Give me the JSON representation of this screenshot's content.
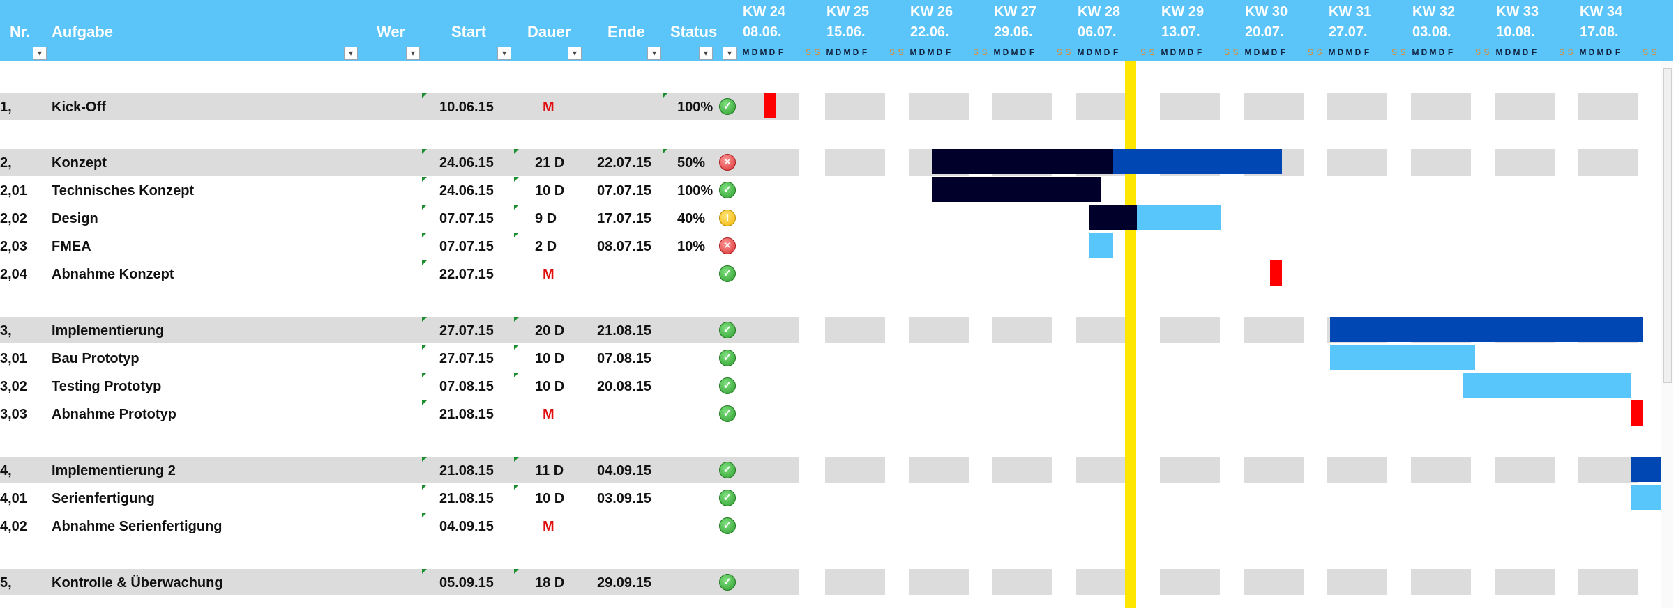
{
  "header": {
    "nr": "Nr.",
    "task": "Aufgabe",
    "who": "Wer",
    "start": "Start",
    "duration": "Dauer",
    "end": "Ende",
    "status": "Status",
    "filter_glyph": "▾"
  },
  "weeks": [
    {
      "kw": "KW 24",
      "date": "08.06."
    },
    {
      "kw": "KW 25",
      "date": "15.06."
    },
    {
      "kw": "KW 26",
      "date": "22.06."
    },
    {
      "kw": "KW 27",
      "date": "29.06."
    },
    {
      "kw": "KW 28",
      "date": "06.07."
    },
    {
      "kw": "KW 29",
      "date": "13.07."
    },
    {
      "kw": "KW 30",
      "date": "20.07."
    },
    {
      "kw": "KW 31",
      "date": "27.07."
    },
    {
      "kw": "KW 32",
      "date": "03.08."
    },
    {
      "kw": "KW 33",
      "date": "10.08."
    },
    {
      "kw": "KW 34",
      "date": "17.08."
    }
  ],
  "day_letters": [
    "M",
    "D",
    "M",
    "D",
    "F",
    "S",
    "S"
  ],
  "tasks": [
    {
      "nr": "1,",
      "name": "Kick-Off",
      "start": "10.06.15",
      "duration": "M",
      "end": "",
      "pct": "100%",
      "status": "ok",
      "group": true
    },
    {
      "nr": "2,",
      "name": "Konzept",
      "start": "24.06.15",
      "duration": "21 D",
      "end": "22.07.15",
      "pct": "50%",
      "status": "err",
      "group": true
    },
    {
      "nr": "2,01",
      "name": "Technisches Konzept",
      "start": "24.06.15",
      "duration": "10 D",
      "end": "07.07.15",
      "pct": "100%",
      "status": "ok",
      "group": false
    },
    {
      "nr": "2,02",
      "name": "Design",
      "start": "07.07.15",
      "duration": "9 D",
      "end": "17.07.15",
      "pct": "40%",
      "status": "warn",
      "group": false
    },
    {
      "nr": "2,03",
      "name": "FMEA",
      "start": "07.07.15",
      "duration": "2 D",
      "end": "08.07.15",
      "pct": "10%",
      "status": "err",
      "group": false
    },
    {
      "nr": "2,04",
      "name": "Abnahme Konzept",
      "start": "22.07.15",
      "duration": "M",
      "end": "",
      "pct": "",
      "status": "ok",
      "group": false
    },
    {
      "nr": "3,",
      "name": "Implementierung",
      "start": "27.07.15",
      "duration": "20 D",
      "end": "21.08.15",
      "pct": "",
      "status": "ok",
      "group": true
    },
    {
      "nr": "3,01",
      "name": "Bau Prototyp",
      "start": "27.07.15",
      "duration": "10 D",
      "end": "07.08.15",
      "pct": "",
      "status": "ok",
      "group": false
    },
    {
      "nr": "3,02",
      "name": "Testing Prototyp",
      "start": "07.08.15",
      "duration": "10 D",
      "end": "20.08.15",
      "pct": "",
      "status": "ok",
      "group": false
    },
    {
      "nr": "3,03",
      "name": "Abnahme Prototyp",
      "start": "21.08.15",
      "duration": "M",
      "end": "",
      "pct": "",
      "status": "ok",
      "group": false
    },
    {
      "nr": "4,",
      "name": "Implementierung 2",
      "start": "21.08.15",
      "duration": "11 D",
      "end": "04.09.15",
      "pct": "",
      "status": "ok",
      "group": true
    },
    {
      "nr": "4,01",
      "name": "Serienfertigung",
      "start": "21.08.15",
      "duration": "10 D",
      "end": "03.09.15",
      "pct": "",
      "status": "ok",
      "group": false
    },
    {
      "nr": "4,02",
      "name": "Abnahme Serienfertigung",
      "start": "04.09.15",
      "duration": "M",
      "end": "",
      "pct": "",
      "status": "ok",
      "group": false
    },
    {
      "nr": "5,",
      "name": "Kontrolle & Überwachung",
      "start": "05.09.15",
      "duration": "18 D",
      "end": "29.09.15",
      "pct": "",
      "status": "ok",
      "group": true
    }
  ],
  "gantt": {
    "milestone_color": "#ff0000",
    "done_color": "#00002a",
    "group_color": "#0047b3",
    "open_color": "#59c6fb",
    "today_color": "#ffe600",
    "today_label": "08.07.15"
  }
}
